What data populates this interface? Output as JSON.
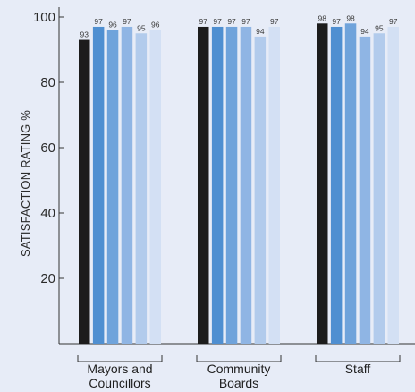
{
  "chart_data": {
    "type": "bar",
    "ylabel": "SATISFACTION RATING %",
    "ylim": [
      0,
      100
    ],
    "yticks": [
      20,
      40,
      60,
      80,
      100
    ],
    "categories": [
      {
        "lines": [
          "Mayors and",
          "Councillors"
        ]
      },
      {
        "lines": [
          "Community",
          "Boards"
        ]
      },
      {
        "lines": [
          "Staff"
        ]
      }
    ],
    "series": [
      {
        "color": "#1c1c1c",
        "values": [
          93,
          97,
          98
        ]
      },
      {
        "color": "#4f8fd1",
        "values": [
          97,
          97,
          97
        ]
      },
      {
        "color": "#6fa3db",
        "values": [
          96,
          97,
          98
        ]
      },
      {
        "color": "#8fb5e4",
        "values": [
          97,
          97,
          94
        ]
      },
      {
        "color": "#b2cbec",
        "values": [
          95,
          94,
          95
        ]
      },
      {
        "color": "#d3e0f4",
        "values": [
          96,
          97,
          97
        ]
      }
    ]
  }
}
